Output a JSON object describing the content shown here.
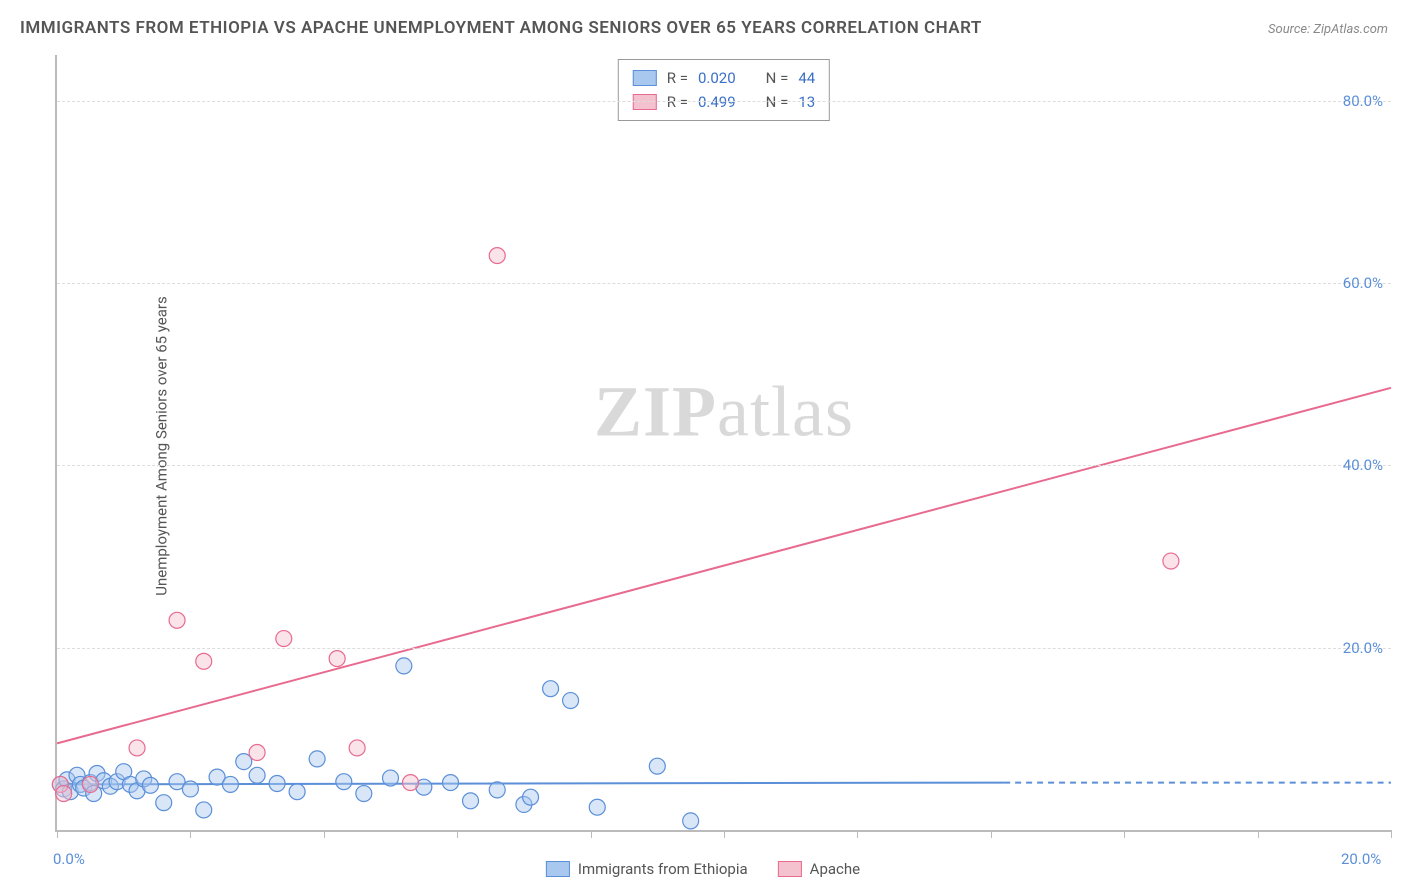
{
  "title": "IMMIGRANTS FROM ETHIOPIA VS APACHE UNEMPLOYMENT AMONG SENIORS OVER 65 YEARS CORRELATION CHART",
  "source": "Source: ZipAtlas.com",
  "y_axis_label": "Unemployment Among Seniors over 65 years",
  "watermark_bold": "ZIP",
  "watermark_rest": "atlas",
  "chart": {
    "type": "scatter",
    "xlim": [
      0,
      20
    ],
    "ylim": [
      0,
      85
    ],
    "background_color": "#ffffff",
    "grid_color": "#dddddd",
    "axis_color": "#bbbbbb",
    "tick_label_color": "#5b8fd8",
    "y_ticks": [
      20,
      40,
      60,
      80
    ],
    "y_tick_labels": [
      "20.0%",
      "40.0%",
      "60.0%",
      "80.0%"
    ],
    "x_ticks": [
      0,
      2,
      4,
      6,
      8,
      10,
      12,
      14,
      16,
      18,
      20
    ],
    "x_tick_show_labels": {
      "0": "0.0%",
      "20": "20.0%"
    },
    "marker_radius": 8,
    "series": [
      {
        "name": "Immigrants from Ethiopia",
        "color_fill": "#a9c8ef",
        "color_stroke": "#5b8fd8",
        "R": "0.020",
        "N": "44",
        "trend": {
          "x1": 0,
          "y1": 5.0,
          "x2": 14.2,
          "y2": 5.2,
          "dash_from_x": 14.2,
          "dash_to_x": 20,
          "dash_y": 5.2
        },
        "points": [
          [
            0.05,
            5.0
          ],
          [
            0.1,
            4.5
          ],
          [
            0.15,
            5.5
          ],
          [
            0.2,
            4.2
          ],
          [
            0.3,
            6.0
          ],
          [
            0.35,
            5.0
          ],
          [
            0.4,
            4.6
          ],
          [
            0.5,
            5.2
          ],
          [
            0.55,
            4.0
          ],
          [
            0.6,
            6.2
          ],
          [
            0.7,
            5.4
          ],
          [
            0.8,
            4.8
          ],
          [
            0.9,
            5.3
          ],
          [
            1.0,
            6.4
          ],
          [
            1.1,
            5.0
          ],
          [
            1.2,
            4.3
          ],
          [
            1.3,
            5.6
          ],
          [
            1.4,
            4.9
          ],
          [
            1.6,
            3.0
          ],
          [
            1.8,
            5.3
          ],
          [
            2.0,
            4.5
          ],
          [
            2.2,
            2.2
          ],
          [
            2.4,
            5.8
          ],
          [
            2.6,
            5.0
          ],
          [
            2.8,
            7.5
          ],
          [
            3.0,
            6.0
          ],
          [
            3.3,
            5.1
          ],
          [
            3.6,
            4.2
          ],
          [
            3.9,
            7.8
          ],
          [
            4.3,
            5.3
          ],
          [
            4.6,
            4.0
          ],
          [
            5.0,
            5.7
          ],
          [
            5.2,
            18.0
          ],
          [
            5.5,
            4.7
          ],
          [
            5.9,
            5.2
          ],
          [
            6.2,
            3.2
          ],
          [
            6.6,
            4.4
          ],
          [
            7.0,
            2.8
          ],
          [
            7.1,
            3.6
          ],
          [
            7.4,
            15.5
          ],
          [
            7.7,
            14.2
          ],
          [
            8.1,
            2.5
          ],
          [
            9.0,
            7.0
          ],
          [
            9.5,
            1.0
          ]
        ]
      },
      {
        "name": "Apache",
        "color_fill": "#f4c1cf",
        "color_stroke": "#e86a8f",
        "R": "0.499",
        "N": "13",
        "trend": {
          "x1": 0,
          "y1": 9.5,
          "x2": 20,
          "y2": 48.5
        },
        "points": [
          [
            0.05,
            5.0
          ],
          [
            0.1,
            4.0
          ],
          [
            0.5,
            5.0
          ],
          [
            1.2,
            9.0
          ],
          [
            1.8,
            23.0
          ],
          [
            2.2,
            18.5
          ],
          [
            3.0,
            8.5
          ],
          [
            3.4,
            21.0
          ],
          [
            4.2,
            18.8
          ],
          [
            4.5,
            9.0
          ],
          [
            5.3,
            5.2
          ],
          [
            6.6,
            63.0
          ],
          [
            16.7,
            29.5
          ]
        ]
      }
    ]
  },
  "legend_labels": {
    "R": "R =",
    "N": "N ="
  },
  "bottom_legend": [
    "Immigrants from Ethiopia",
    "Apache"
  ]
}
